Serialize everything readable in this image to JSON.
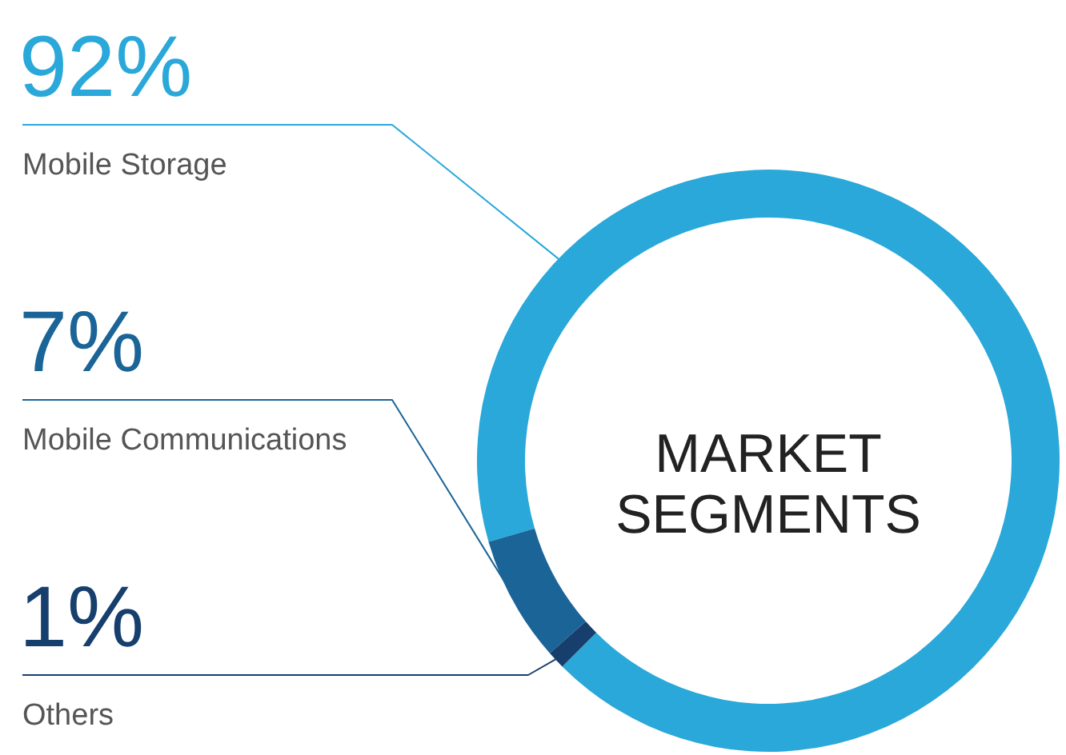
{
  "chart_data": {
    "type": "donut",
    "title": "MARKET\nSEGMENTS",
    "categories": [
      "Mobile Storage",
      "Mobile Communications",
      "Others"
    ],
    "values": [
      92,
      7,
      1
    ],
    "colors": [
      "#29a8d9",
      "#1b6497",
      "#173f6e"
    ],
    "value_labels": [
      "92%",
      "7%",
      "1%"
    ]
  }
}
